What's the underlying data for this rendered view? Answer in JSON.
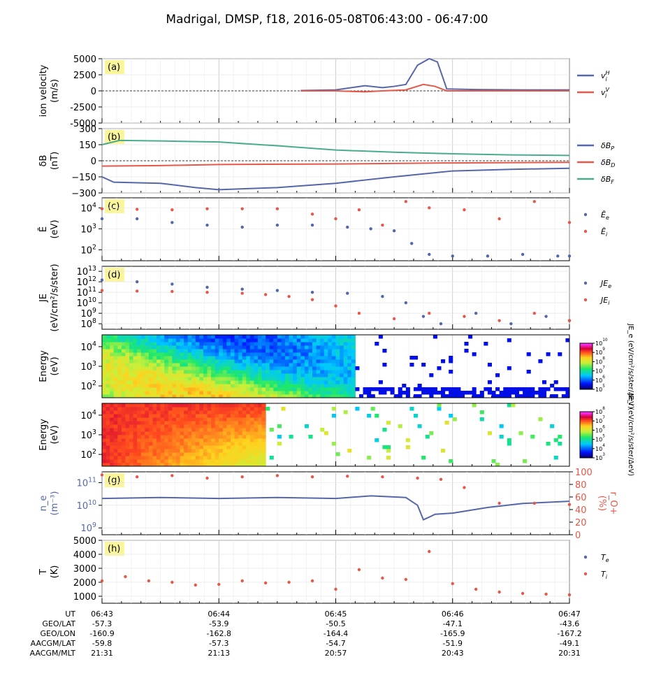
{
  "title": "Madrigal, DMSP, f18, 2016-05-08T06:43:00 - 06:47:00",
  "colors": {
    "blue": "#5567a8",
    "red": "#e5584a",
    "teal": "#4aac8e",
    "panel_label_bg": "#fbf59c",
    "axis": "#000000"
  },
  "time_axis": {
    "row_labels": [
      "UT",
      "GEO/LAT",
      "GEO/LON",
      "AACGM/LAT",
      "AACGM/MLT"
    ],
    "columns": [
      {
        "UT": "06:43",
        "GEO/LAT": "-57.3",
        "GEO/LON": "-160.9",
        "AACGM/LAT": "-59.8",
        "AACGM/MLT": "21:31"
      },
      {
        "UT": "06:44",
        "GEO/LAT": "-53.9",
        "GEO/LON": "-162.8",
        "AACGM/LAT": "-57.3",
        "AACGM/MLT": "21:13"
      },
      {
        "UT": "06:45",
        "GEO/LAT": "-50.5",
        "GEO/LON": "-164.4",
        "AACGM/LAT": "-54.7",
        "AACGM/MLT": "20:57"
      },
      {
        "UT": "06:46",
        "GEO/LAT": "-47.1",
        "GEO/LON": "-165.9",
        "AACGM/LAT": "-51.9",
        "AACGM/MLT": "20:43"
      },
      {
        "UT": "06:47",
        "GEO/LAT": "-43.6",
        "GEO/LON": "-167.2",
        "AACGM/LAT": "-49.1",
        "AACGM/MLT": "20:31"
      }
    ]
  },
  "chart_data": [
    {
      "panel": "(a)",
      "type": "line",
      "ylabel": [
        "ion velocity",
        "(m/s)"
      ],
      "ylim": [
        -5000,
        5000
      ],
      "yticks": [
        "5000",
        "2500",
        "0",
        "-2500",
        "-5000"
      ],
      "x_unit": "minutes after 06:43",
      "series": [
        {
          "name": "v_i^H",
          "legend_main": "v",
          "legend_sub": "i",
          "legend_sup": "H",
          "color": "blue",
          "x": [
            1.7,
            2.0,
            2.25,
            2.4,
            2.5,
            2.6,
            2.7,
            2.8,
            2.87,
            2.95,
            3.2,
            3.6,
            4.0
          ],
          "y": [
            50,
            150,
            800,
            500,
            700,
            1000,
            4000,
            5000,
            4500,
            300,
            200,
            150,
            150
          ]
        },
        {
          "name": "v_i^V",
          "legend_main": "v",
          "legend_sub": "i",
          "legend_sup": "V",
          "color": "red",
          "x": [
            1.7,
            2.0,
            2.25,
            2.4,
            2.6,
            2.75,
            2.85,
            2.95,
            3.2,
            4.0
          ],
          "y": [
            0,
            0,
            -150,
            0,
            150,
            1000,
            700,
            0,
            0,
            0
          ]
        }
      ]
    },
    {
      "panel": "(b)",
      "type": "line",
      "ylabel": [
        "δB",
        "(nT)"
      ],
      "ylim": [
        -300,
        300
      ],
      "yticks": [
        "300",
        "150",
        "0",
        "−150",
        "−300"
      ],
      "x_unit": "minutes after 06:43",
      "series": [
        {
          "name": "δB_P",
          "legend_main": "δB",
          "legend_sub": "P",
          "color": "blue",
          "x": [
            0,
            0.1,
            0.5,
            0.8,
            1.0,
            1.5,
            2.0,
            2.5,
            3.0,
            3.5,
            4.0
          ],
          "y": [
            -150,
            -200,
            -210,
            -250,
            -270,
            -250,
            -210,
            -150,
            -95,
            -80,
            -70
          ]
        },
        {
          "name": "δB_D",
          "legend_main": "δB",
          "legend_sub": "D",
          "color": "red",
          "x": [
            0,
            0.5,
            1.0,
            2.0,
            3.0,
            4.0
          ],
          "y": [
            -50,
            -45,
            -35,
            -30,
            -20,
            -15
          ]
        },
        {
          "name": "δB_F",
          "legend_main": "δB",
          "legend_sub": "F",
          "color": "teal",
          "x": [
            0,
            0.15,
            0.5,
            1.0,
            1.5,
            2.0,
            2.5,
            3.0,
            3.5,
            4.0
          ],
          "y": [
            150,
            190,
            185,
            175,
            140,
            100,
            80,
            65,
            55,
            50
          ]
        }
      ]
    },
    {
      "panel": "(c)",
      "type": "scatter",
      "ylabel": [
        "Ē",
        "(eV)"
      ],
      "yscale": "log",
      "ylim": [
        30,
        30000
      ],
      "yticks": [
        "10^4",
        "10^3",
        "10^2"
      ],
      "x_unit": "minutes after 06:43",
      "series": [
        {
          "name": "Ē_e",
          "legend_main": "Ē",
          "legend_sub": "e",
          "color": "blue",
          "x": [
            0,
            0.3,
            0.6,
            0.9,
            1.2,
            1.5,
            1.8,
            2.1,
            2.3,
            2.5,
            2.65,
            2.8,
            3.0,
            3.3,
            3.6,
            3.9,
            4.0
          ],
          "y": [
            3000,
            3000,
            2000,
            1500,
            1200,
            1500,
            1500,
            1200,
            1000,
            800,
            200,
            60,
            50,
            50,
            60,
            50,
            50
          ]
        },
        {
          "name": "Ē_i",
          "legend_main": "Ē",
          "legend_sub": "i",
          "color": "red",
          "x": [
            0,
            0.3,
            0.6,
            0.9,
            1.2,
            1.5,
            1.8,
            2.0,
            2.2,
            2.4,
            2.6,
            2.8,
            3.1,
            3.4,
            3.7,
            4.0
          ],
          "y": [
            9000,
            8500,
            8000,
            9000,
            9000,
            9000,
            5000,
            3000,
            8000,
            1500,
            20000,
            10000,
            8000,
            3000,
            20000,
            2000
          ]
        }
      ]
    },
    {
      "panel": "(d)",
      "type": "scatter",
      "ylabel": [
        "JE",
        "(eV/cm²/s/ster)"
      ],
      "yscale": "log",
      "ylim": [
        30000000.0,
        30000000000000.0
      ],
      "yticks": [
        "10^13",
        "10^12",
        "10^11",
        "10^10",
        "10^9",
        "10^8"
      ],
      "x_unit": "minutes after 06:43",
      "series": [
        {
          "name": "JE_e",
          "legend_main": "JE",
          "legend_sub": "e",
          "color": "blue",
          "x": [
            0,
            0.3,
            0.6,
            0.9,
            1.2,
            1.5,
            1.8,
            2.1,
            2.4,
            2.6,
            2.75,
            2.9,
            3.2,
            3.5,
            3.8,
            4.0
          ],
          "y": [
            1500000000000.0,
            1000000000000.0,
            600000000000.0,
            300000000000.0,
            200000000000.0,
            150000000000.0,
            100000000000.0,
            80000000000.0,
            40000000000.0,
            10000000000.0,
            500000000.0,
            100000000.0,
            1000000000.0,
            100000000.0,
            500000000.0,
            200000000.0
          ]
        },
        {
          "name": "JE_i",
          "legend_main": "JE",
          "legend_sub": "i",
          "color": "red",
          "x": [
            0,
            0.3,
            0.6,
            0.9,
            1.2,
            1.4,
            1.6,
            1.8,
            2.0,
            2.2,
            2.5,
            2.8,
            3.1,
            3.4,
            3.7,
            4.0
          ],
          "y": [
            150000000000.0,
            130000000000.0,
            120000000000.0,
            100000000000.0,
            80000000000.0,
            60000000000.0,
            40000000000.0,
            20000000000.0,
            5000000000.0,
            1000000000.0,
            300000000.0,
            1000000000.0,
            500000000.0,
            200000000.0,
            1000000000.0,
            200000000.0
          ]
        }
      ]
    },
    {
      "panel": "(e)",
      "type": "heatmap",
      "ylabel": [
        "Energy",
        "(eV)"
      ],
      "yscale": "log",
      "yticks": [
        "10^4",
        "10^3",
        "10^2"
      ],
      "colorbar": {
        "label": "JE_e (eV/cm²/s/ster/ΔeV)",
        "scale": "log",
        "ticks": [
          "10^10",
          "10^9",
          "10^8",
          "10^7",
          "10^6",
          "10^5"
        ]
      },
      "description_values": {
        "x_edge_minutes": 2.15,
        "level_before": 100000000.0,
        "level_after": 100000.0
      }
    },
    {
      "panel": "(f)",
      "type": "heatmap",
      "ylabel": [
        "Energy",
        "(eV)"
      ],
      "yscale": "log",
      "yticks": [
        "10^4",
        "10^3",
        "10^2"
      ],
      "colorbar": {
        "label": "JE_i (eV/cm²/s/ster/ΔeV)",
        "scale": "log",
        "ticks": [
          "10^8",
          "10^7",
          "10^6",
          "10^5",
          "10^4",
          "10^3"
        ]
      },
      "description_values": {
        "x_edge_minutes": 1.38,
        "level_before": 30000000.0,
        "level_after": 100000.0
      }
    },
    {
      "panel": "(g)",
      "type": "line",
      "ylabel": [
        "n_e",
        "(m⁻³)"
      ],
      "yscale": "log",
      "ylim": [
        500000000.0,
        300000000000.0
      ],
      "yticks": [
        "10^11",
        "10^10",
        "10^9"
      ],
      "ylabel2": [
        "r_O+",
        "(%)"
      ],
      "ylim2": [
        0,
        100
      ],
      "yticks2": [
        "100",
        "80",
        "60",
        "40",
        "20",
        "0"
      ],
      "x_unit": "minutes after 06:43",
      "series": [
        {
          "name": "n_e",
          "color": "blue",
          "x": [
            0,
            0.5,
            1.0,
            1.5,
            2.0,
            2.3,
            2.6,
            2.7,
            2.75,
            2.8,
            2.85,
            3.0,
            3.3,
            3.6,
            4.0
          ],
          "y": [
            20000000000.0,
            22000000000.0,
            20000000000.0,
            22000000000.0,
            20000000000.0,
            26000000000.0,
            22000000000.0,
            10000000000.0,
            2300000000.0,
            3000000000.0,
            4000000000.0,
            4500000000.0,
            8000000000.0,
            12000000000.0,
            15000000000.0
          ]
        },
        {
          "name": "r_O+",
          "color": "red",
          "axis": "right",
          "x": [
            0,
            0.3,
            0.6,
            0.9,
            1.2,
            1.5,
            1.8,
            2.1,
            2.4,
            2.7,
            2.9,
            3.1,
            3.4,
            3.7,
            4.0
          ],
          "y": [
            95,
            92,
            94,
            90,
            92,
            94,
            92,
            93,
            92,
            90,
            88,
            75,
            50,
            50,
            48
          ]
        }
      ]
    },
    {
      "panel": "(h)",
      "type": "scatter",
      "ylabel": [
        "T",
        "(K)"
      ],
      "ylim": [
        500,
        5000
      ],
      "yticks": [
        "5000",
        "4000",
        "3000",
        "2000",
        "1000"
      ],
      "x_unit": "minutes after 06:43",
      "series": [
        {
          "name": "T_e",
          "legend_main": "T",
          "legend_sub": "e",
          "color": "blue",
          "x": [],
          "y": []
        },
        {
          "name": "T_i",
          "legend_main": "T",
          "legend_sub": "i",
          "color": "red",
          "x": [
            0,
            0.2,
            0.4,
            0.6,
            0.8,
            1.0,
            1.2,
            1.4,
            1.6,
            1.8,
            2.0,
            2.2,
            2.4,
            2.6,
            2.8,
            3.0,
            3.2,
            3.4,
            3.6,
            3.8,
            4.0
          ],
          "y": [
            2100,
            2400,
            2100,
            2000,
            1800,
            1850,
            2100,
            1950,
            2000,
            2100,
            1500,
            2900,
            2300,
            2200,
            4200,
            1900,
            1500,
            1300,
            1200,
            1150,
            1100
          ]
        }
      ]
    }
  ]
}
